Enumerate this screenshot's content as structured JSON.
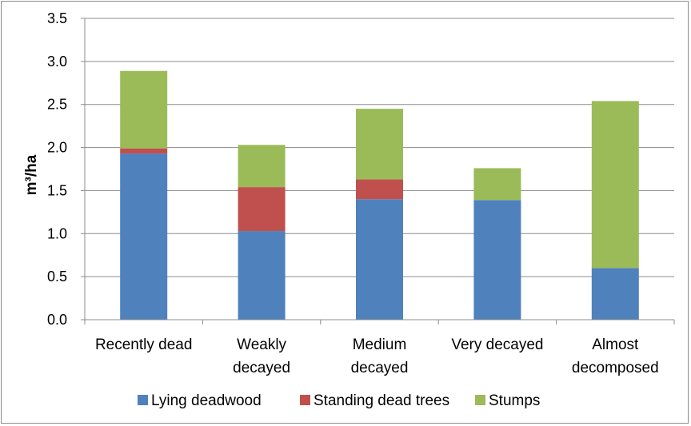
{
  "chart_data": {
    "type": "bar",
    "stacked": true,
    "title": "",
    "xlabel": "",
    "ylabel": "m³/ha",
    "ylim": [
      0,
      3.5
    ],
    "yticks": [
      "0.0",
      "0.5",
      "1.0",
      "1.5",
      "2.0",
      "2.5",
      "3.0",
      "3.5"
    ],
    "grid": true,
    "legend_position": "bottom",
    "categories": [
      [
        "Recently dead"
      ],
      [
        "Weakly",
        "decayed"
      ],
      [
        "Medium",
        "decayed"
      ],
      [
        "Very decayed"
      ],
      [
        "Almost",
        "decomposed"
      ]
    ],
    "series": [
      {
        "name": "Lying deadwood",
        "color": "#4F81BD",
        "values": [
          1.93,
          1.03,
          1.4,
          1.39,
          0.6
        ]
      },
      {
        "name": "Standing dead trees",
        "color": "#C0504D",
        "values": [
          0.06,
          0.51,
          0.23,
          0.0,
          0.0
        ]
      },
      {
        "name": "Stumps",
        "color": "#9BBB59",
        "values": [
          0.9,
          0.49,
          0.82,
          0.37,
          1.94
        ]
      }
    ]
  }
}
